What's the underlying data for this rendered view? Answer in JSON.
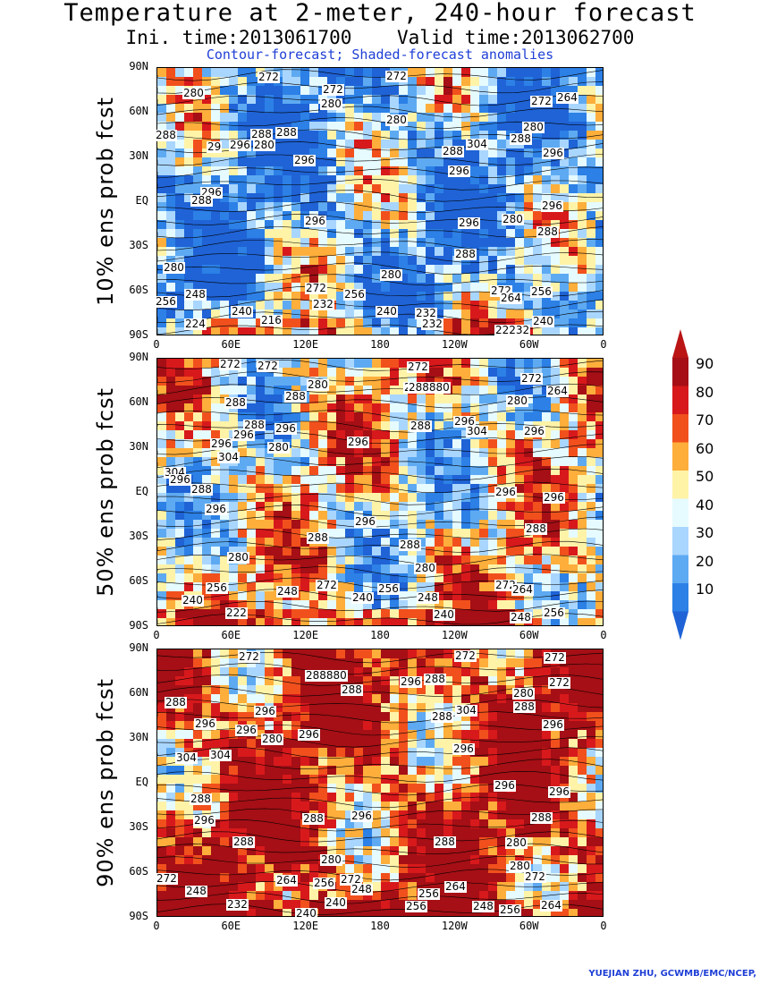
{
  "header": {
    "title": "Temperature at 2-meter, 240-hour forecast",
    "subtitle": "Ini. time:2013061700    Valid time:2013062700",
    "subtitle2": "Contour-forecast; Shaded-forecast anomalies"
  },
  "axes": {
    "lat_ticks": [
      "90N",
      "60N",
      "30N",
      "EQ",
      "30S",
      "60S",
      "90S"
    ],
    "lon_ticks": [
      "0",
      "60E",
      "120E",
      "180",
      "120W",
      "60W",
      "0"
    ]
  },
  "panels": [
    {
      "label": "10% ens prob fcst",
      "warm_fraction": 0.3,
      "contour_labels": [
        [
          "272",
          300,
          87
        ],
        [
          "272",
          372,
          101
        ],
        [
          "272",
          443,
          86
        ],
        [
          "280",
          216,
          105
        ],
        [
          "280",
          370,
          117
        ],
        [
          "272",
          605,
          114
        ],
        [
          "264",
          634,
          110
        ],
        [
          "280",
          443,
          135
        ],
        [
          "280",
          596,
          143
        ],
        [
          "288",
          185,
          152
        ],
        [
          "288",
          292,
          151
        ],
        [
          "288",
          320,
          149
        ],
        [
          "288",
          582,
          156
        ],
        [
          "280",
          295,
          163
        ],
        [
          "296",
          268,
          163
        ],
        [
          "29",
          243,
          165
        ],
        [
          "304",
          533,
          162
        ],
        [
          "288",
          506,
          170
        ],
        [
          "296",
          618,
          172
        ],
        [
          "296",
          340,
          180
        ],
        [
          "296",
          513,
          192
        ],
        [
          "296",
          236,
          216
        ],
        [
          "296",
          617,
          231
        ],
        [
          "288",
          225,
          225
        ],
        [
          "280",
          573,
          246
        ],
        [
          "296",
          524,
          250
        ],
        [
          "296",
          352,
          248
        ],
        [
          "288",
          612,
          260
        ],
        [
          "288",
          520,
          285
        ],
        [
          "280",
          194,
          300
        ],
        [
          "280",
          437,
          308
        ],
        [
          "272",
          353,
          323
        ],
        [
          "256",
          396,
          330
        ],
        [
          "272",
          560,
          326
        ],
        [
          "256",
          605,
          327
        ],
        [
          "248",
          218,
          330
        ],
        [
          "264",
          571,
          334
        ],
        [
          "256",
          185,
          338
        ],
        [
          "232",
          361,
          341
        ],
        [
          "240",
          270,
          349
        ],
        [
          "240",
          432,
          349
        ],
        [
          "232",
          476,
          351
        ],
        [
          "216",
          303,
          359
        ],
        [
          "224",
          218,
          363
        ],
        [
          "232",
          483,
          363
        ],
        [
          "22232",
          565,
          370
        ],
        [
          "240",
          607,
          360
        ]
      ]
    },
    {
      "label": "50% ens prob fcst",
      "warm_fraction": 0.55,
      "contour_labels": [
        [
          "272",
          257,
          408
        ],
        [
          "272",
          299,
          410
        ],
        [
          "272",
          467,
          411
        ],
        [
          "272",
          594,
          424
        ],
        [
          "264",
          623,
          438
        ],
        [
          "280",
          355,
          431
        ],
        [
          "288",
          463,
          434
        ],
        [
          "288880",
          468,
          434
        ],
        [
          "288",
          330,
          444
        ],
        [
          "288",
          263,
          451
        ],
        [
          "280",
          578,
          449
        ],
        [
          "288",
          470,
          477
        ],
        [
          "296",
          519,
          472
        ],
        [
          "304",
          533,
          483
        ],
        [
          "288",
          284,
          476
        ],
        [
          "296",
          319,
          480
        ],
        [
          "296",
          272,
          487
        ],
        [
          "296",
          597,
          483
        ],
        [
          "296",
          400,
          495
        ],
        [
          "296",
          247,
          497
        ],
        [
          "280",
          311,
          501
        ],
        [
          "304",
          255,
          512
        ],
        [
          "304",
          195,
          529
        ],
        [
          "296",
          201,
          537
        ],
        [
          "288",
          225,
          548
        ],
        [
          "296",
          565,
          551
        ],
        [
          "296",
          619,
          557
        ],
        [
          "296",
          241,
          570
        ],
        [
          "296",
          408,
          584
        ],
        [
          "288",
          599,
          592
        ],
        [
          "288",
          355,
          602
        ],
        [
          "288",
          458,
          610
        ],
        [
          "280",
          266,
          624
        ],
        [
          "280",
          475,
          636
        ],
        [
          "272",
          365,
          655
        ],
        [
          "272",
          565,
          655
        ],
        [
          "264",
          584,
          660
        ],
        [
          "256",
          242,
          658
        ],
        [
          "248",
          321,
          662
        ],
        [
          "256",
          434,
          659
        ],
        [
          "240",
          405,
          669
        ],
        [
          "240",
          215,
          672
        ],
        [
          "248",
          478,
          669
        ],
        [
          "222",
          264,
          686
        ],
        [
          "240",
          496,
          688
        ],
        [
          "248",
          582,
          691
        ],
        [
          "256",
          619,
          686
        ]
      ]
    },
    {
      "label": "90% ens prob fcst",
      "warm_fraction": 0.85,
      "contour_labels": [
        [
          "272",
          278,
          735
        ],
        [
          "272",
          520,
          734
        ],
        [
          "272",
          620,
          736
        ],
        [
          "288880",
          353,
          756
        ],
        [
          "296",
          459,
          763
        ],
        [
          "288",
          486,
          760
        ],
        [
          "272",
          625,
          764
        ],
        [
          "288",
          393,
          772
        ],
        [
          "280",
          585,
          776
        ],
        [
          "288",
          196,
          786
        ],
        [
          "288",
          586,
          791
        ],
        [
          "304",
          521,
          795
        ],
        [
          "288",
          494,
          802
        ],
        [
          "296",
          296,
          796
        ],
        [
          "296",
          229,
          810
        ],
        [
          "296",
          275,
          817
        ],
        [
          "280",
          304,
          827
        ],
        [
          "296",
          345,
          822
        ],
        [
          "296",
          618,
          811
        ],
        [
          "296",
          518,
          838
        ],
        [
          "304",
          246,
          845
        ],
        [
          "304",
          208,
          848
        ],
        [
          "296",
          564,
          879
        ],
        [
          "296",
          625,
          886
        ],
        [
          "288",
          224,
          894
        ],
        [
          "296",
          228,
          918
        ],
        [
          "288",
          350,
          916
        ],
        [
          "296",
          404,
          913
        ],
        [
          "288",
          605,
          915
        ],
        [
          "288",
          272,
          942
        ],
        [
          "288",
          497,
          942
        ],
        [
          "280",
          577,
          943
        ],
        [
          "280",
          370,
          962
        ],
        [
          "280",
          581,
          969
        ],
        [
          "272",
          186,
          983
        ],
        [
          "272",
          598,
          981
        ],
        [
          "264",
          320,
          985
        ],
        [
          "256",
          362,
          988
        ],
        [
          "272",
          392,
          984
        ],
        [
          "248",
          404,
          995
        ],
        [
          "248",
          219,
          997
        ],
        [
          "264",
          509,
          992
        ],
        [
          "256",
          479,
          1000
        ],
        [
          "240",
          375,
          1010
        ],
        [
          "232",
          265,
          1012
        ],
        [
          "256",
          465,
          1014
        ],
        [
          "248",
          540,
          1014
        ],
        [
          "256",
          570,
          1018
        ],
        [
          "264",
          616,
          1013
        ],
        [
          "240",
          342,
          1022
        ]
      ]
    }
  ],
  "colorbar": {
    "labels": [
      "90",
      "80",
      "70",
      "60",
      "50",
      "40",
      "30",
      "20",
      "10"
    ],
    "colors": [
      "#a50f15",
      "#d7191c",
      "#f1501d",
      "#fdae3b",
      "#fff3a8",
      "#e6fbff",
      "#a9d6ff",
      "#5eaaf2",
      "#2c80e6",
      "#1f63d6",
      "#ba1414"
    ]
  },
  "footer": "YUEJIAN ZHU, GCWMB/EMC/NCEP,"
}
